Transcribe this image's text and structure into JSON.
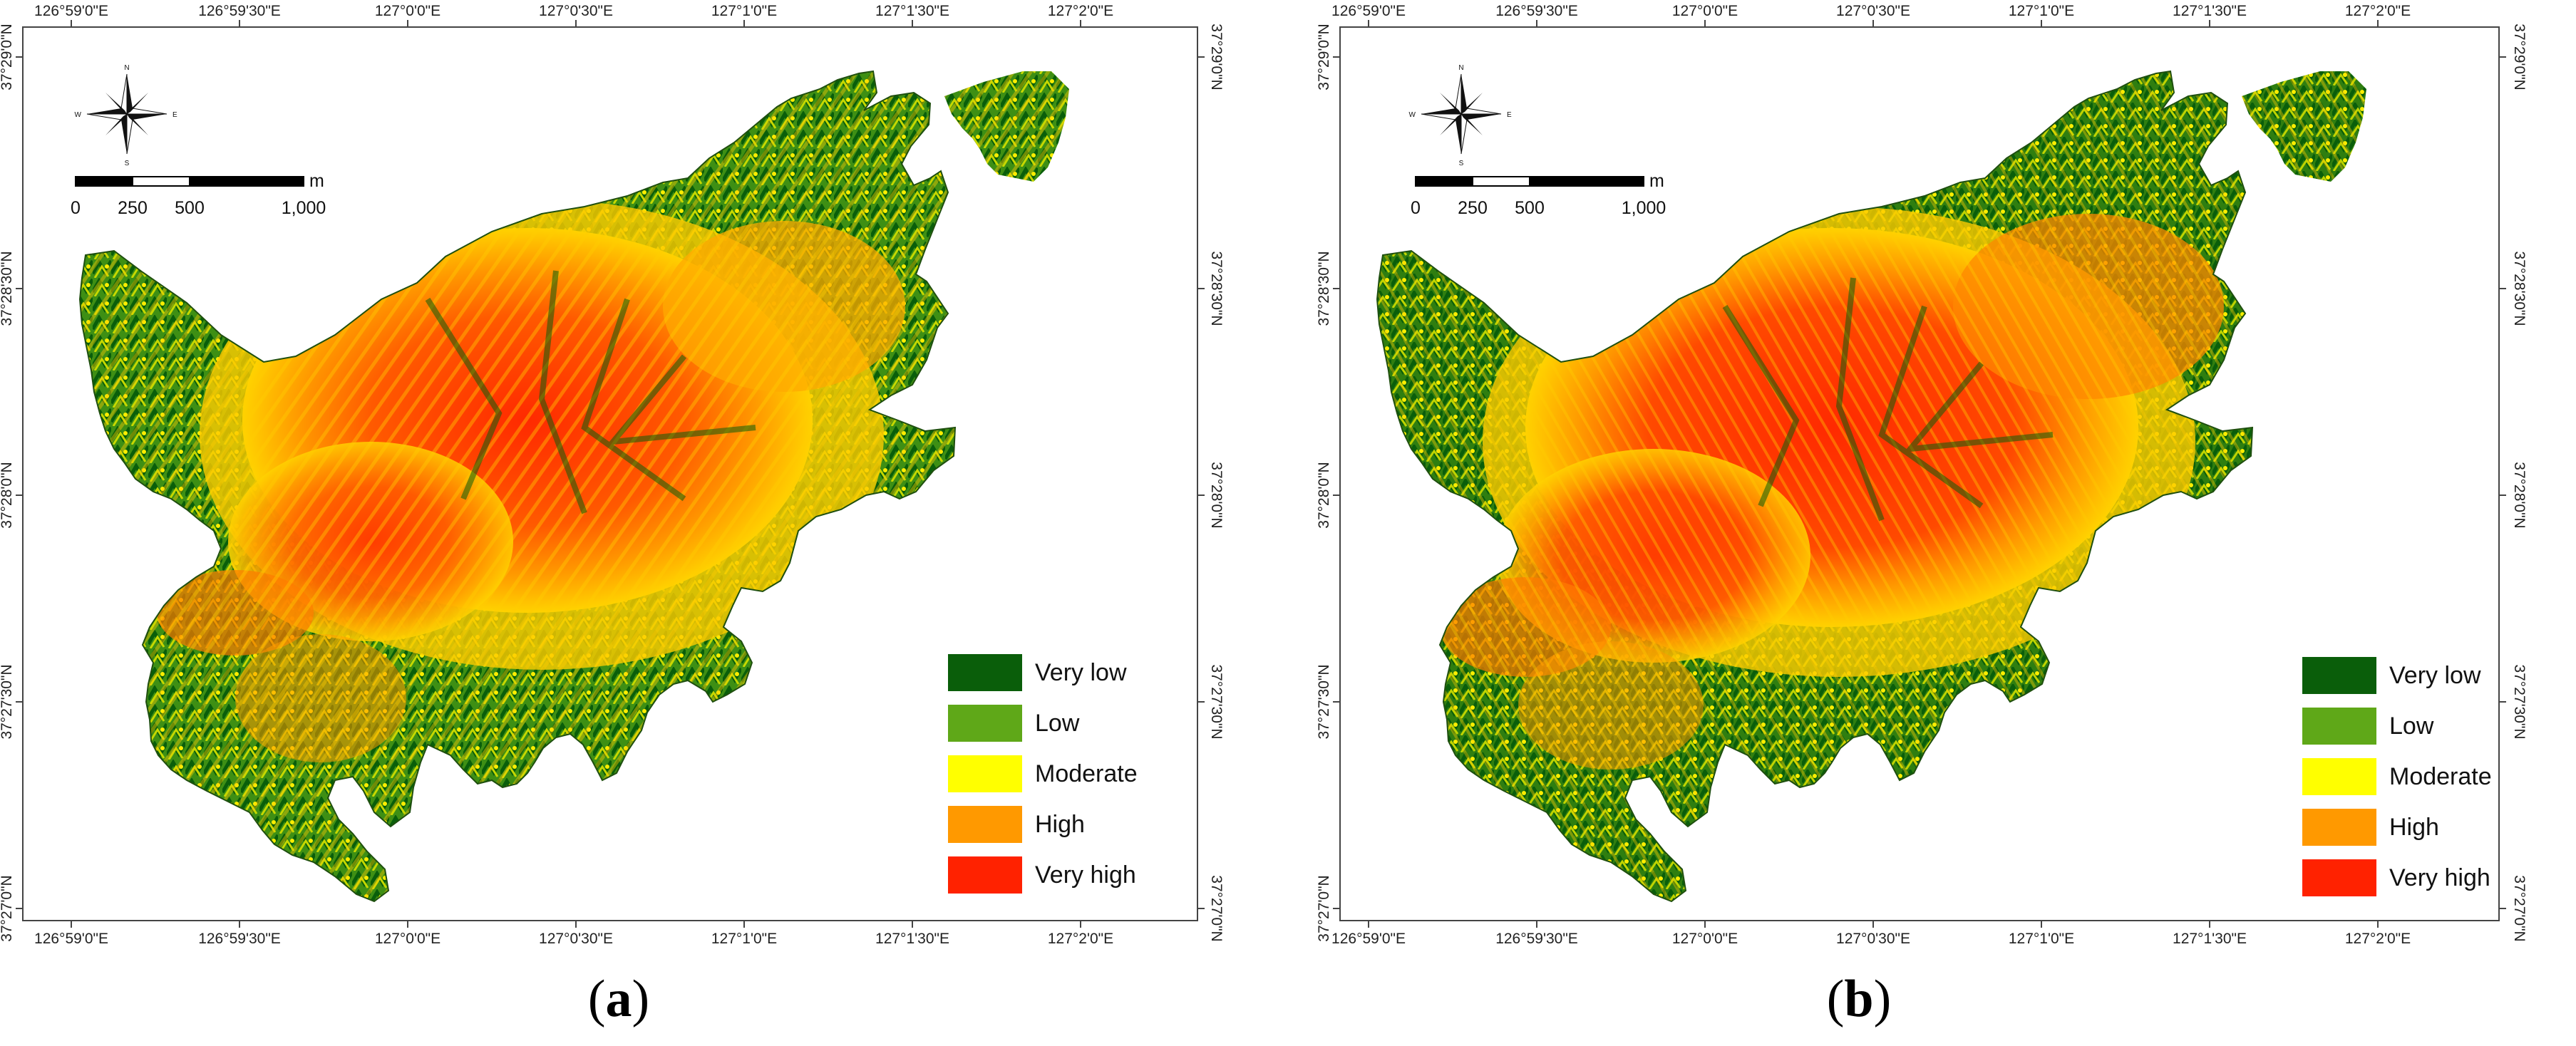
{
  "panels": [
    {
      "id": "a",
      "label_paren_open": "(",
      "label_letter": "a",
      "label_paren_close": ")",
      "longitude_ticks": [
        "126°59'0\"E",
        "126°59'30\"E",
        "127°0'0\"E",
        "127°0'30\"E",
        "127°1'0\"E",
        "127°1'30\"E",
        "127°2'0\"E"
      ],
      "latitude_ticks": [
        "37°29'0\"N",
        "37°28'30\"N",
        "37°28'0\"N",
        "37°27'30\"N",
        "37°27'0\"N"
      ],
      "scale_bar": {
        "unit": "m",
        "labels": [
          "0",
          "250",
          "500",
          "1,000"
        ]
      },
      "compass": {
        "n": "N",
        "s": "S",
        "e": "E",
        "w": "W"
      },
      "legend": [
        {
          "label": "Very low",
          "color": "#0a5e0a"
        },
        {
          "label": "Low",
          "color": "#5fa818"
        },
        {
          "label": "Moderate",
          "color": "#ffff00"
        },
        {
          "label": "High",
          "color": "#ff9900"
        },
        {
          "label": "Very high",
          "color": "#ff2200"
        }
      ]
    },
    {
      "id": "b",
      "label_paren_open": "(",
      "label_letter": "b",
      "label_paren_close": ")",
      "longitude_ticks": [
        "126°59'0\"E",
        "126°59'30\"E",
        "127°0'0\"E",
        "127°0'30\"E",
        "127°1'0\"E",
        "127°1'30\"E",
        "127°2'0\"E"
      ],
      "latitude_ticks": [
        "37°29'0\"N",
        "37°28'30\"N",
        "37°28'0\"N",
        "37°27'30\"N",
        "37°27'0\"N"
      ],
      "scale_bar": {
        "unit": "m",
        "labels": [
          "0",
          "250",
          "500",
          "1,000"
        ]
      },
      "compass": {
        "n": "N",
        "s": "S",
        "e": "E",
        "w": "W"
      },
      "legend": [
        {
          "label": "Very low",
          "color": "#0a5e0a"
        },
        {
          "label": "Low",
          "color": "#5fa818"
        },
        {
          "label": "Moderate",
          "color": "#ffff00"
        },
        {
          "label": "High",
          "color": "#ff9900"
        },
        {
          "label": "Very high",
          "color": "#ff2200"
        }
      ]
    }
  ]
}
